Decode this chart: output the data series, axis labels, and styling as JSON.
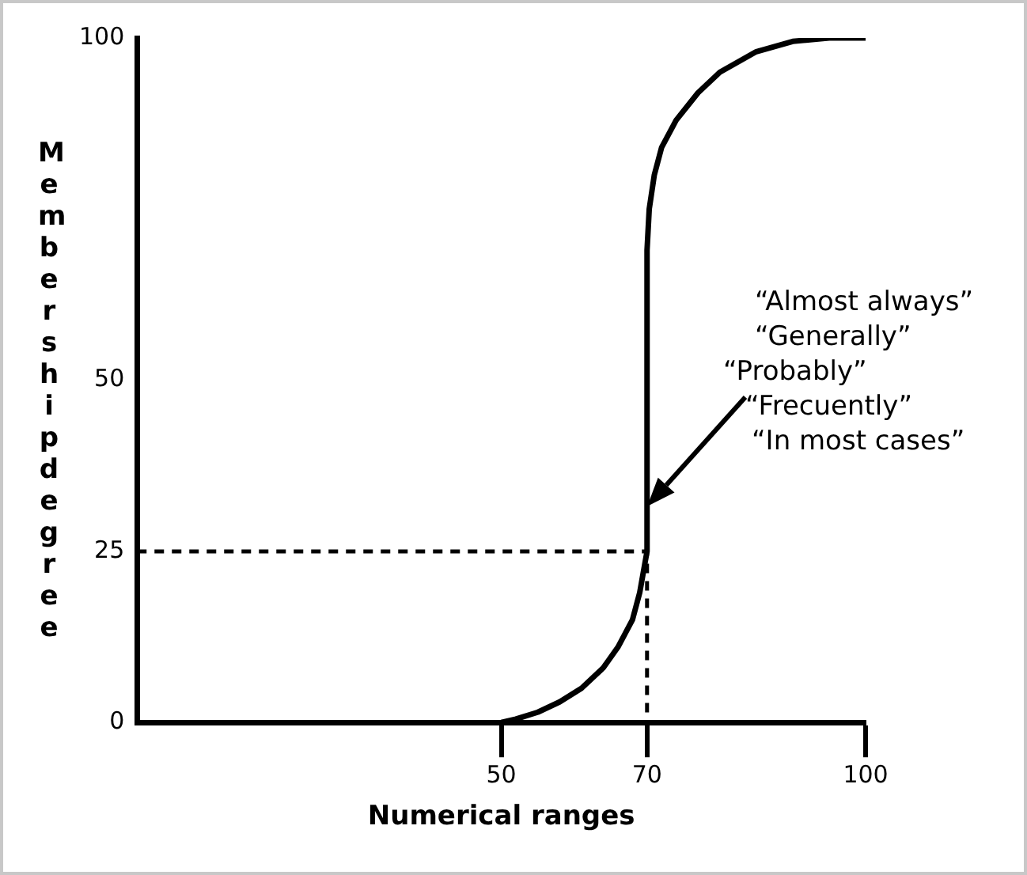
{
  "chart_data": {
    "type": "line",
    "xlabel": "Numerical ranges",
    "ylabel": "Membership degree",
    "xlim": [
      0,
      100
    ],
    "xticks": [
      50,
      70,
      100
    ],
    "ylim": [
      0,
      100
    ],
    "yticks": [
      0,
      25,
      50,
      100
    ],
    "grid": false,
    "legend": false,
    "marker": "none",
    "series": [
      {
        "color": "#000000",
        "x": [
          50,
          52,
          55,
          58,
          61,
          64,
          66,
          68,
          69,
          70,
          70,
          70.3,
          71,
          72,
          74,
          77,
          80,
          85,
          90,
          95,
          100
        ],
        "values": [
          0,
          0.5,
          1.5,
          3,
          5,
          8,
          11,
          15,
          19,
          25,
          69,
          75,
          80,
          84,
          88,
          92,
          95,
          98,
          99.5,
          100,
          100
        ]
      },
      {
        "color": "#000000",
        "line_style": "dashed",
        "x": [
          0,
          70,
          70
        ],
        "values": [
          25,
          25,
          0
        ]
      }
    ],
    "annotations": [
      "“Almost always”",
      "“Generally”",
      "“Probably”",
      "“Frecuently”",
      "“In most cases”"
    ]
  }
}
